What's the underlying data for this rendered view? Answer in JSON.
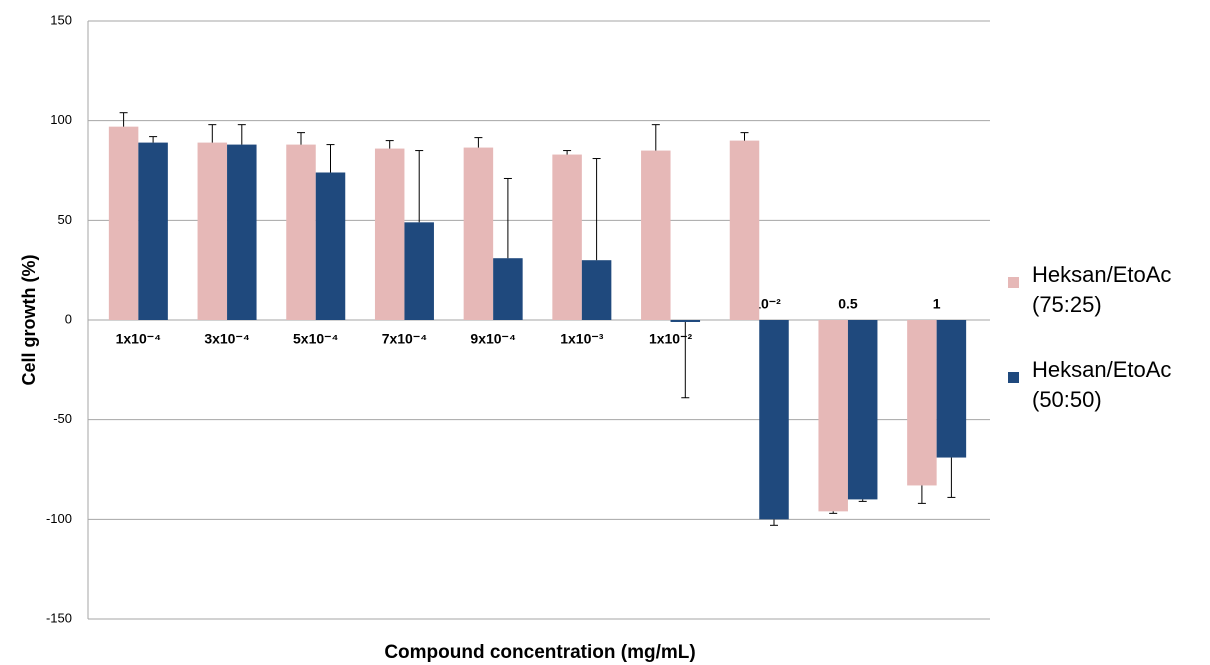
{
  "chart_data": {
    "type": "bar",
    "y_label": "Cell growth  (%)",
    "x_label": "Compound concentration (mg/mL)",
    "categories": [
      "1x10⁻⁴",
      "3x10⁻⁴",
      "5x10⁻⁴",
      "7x10⁻⁴",
      "9x10⁻⁴",
      "1x10⁻³",
      "1x10⁻²",
      "5x10⁻²",
      "0.5",
      "1"
    ],
    "series": [
      {
        "name": "Heksan/EtoAc (75:25)",
        "color": "#e6b8b7",
        "values": [
          97,
          89,
          88,
          86,
          86.5,
          83,
          85,
          90,
          -96,
          -83
        ],
        "errors": [
          7,
          9,
          6,
          4,
          5,
          2,
          13,
          4,
          1,
          9
        ]
      },
      {
        "name": "Heksan/EtoAc (50:50)",
        "color": "#1f497d",
        "values": [
          89,
          88,
          74,
          49,
          31,
          30,
          -1,
          -100,
          -90,
          -69
        ],
        "errors": [
          3,
          10,
          14,
          36,
          40,
          51,
          38,
          3,
          1,
          20
        ]
      }
    ],
    "ylim": [
      -150,
      150
    ],
    "yticks": [
      -150,
      -100,
      -50,
      0,
      50,
      100,
      150
    ],
    "grid": true,
    "legend": "right"
  }
}
